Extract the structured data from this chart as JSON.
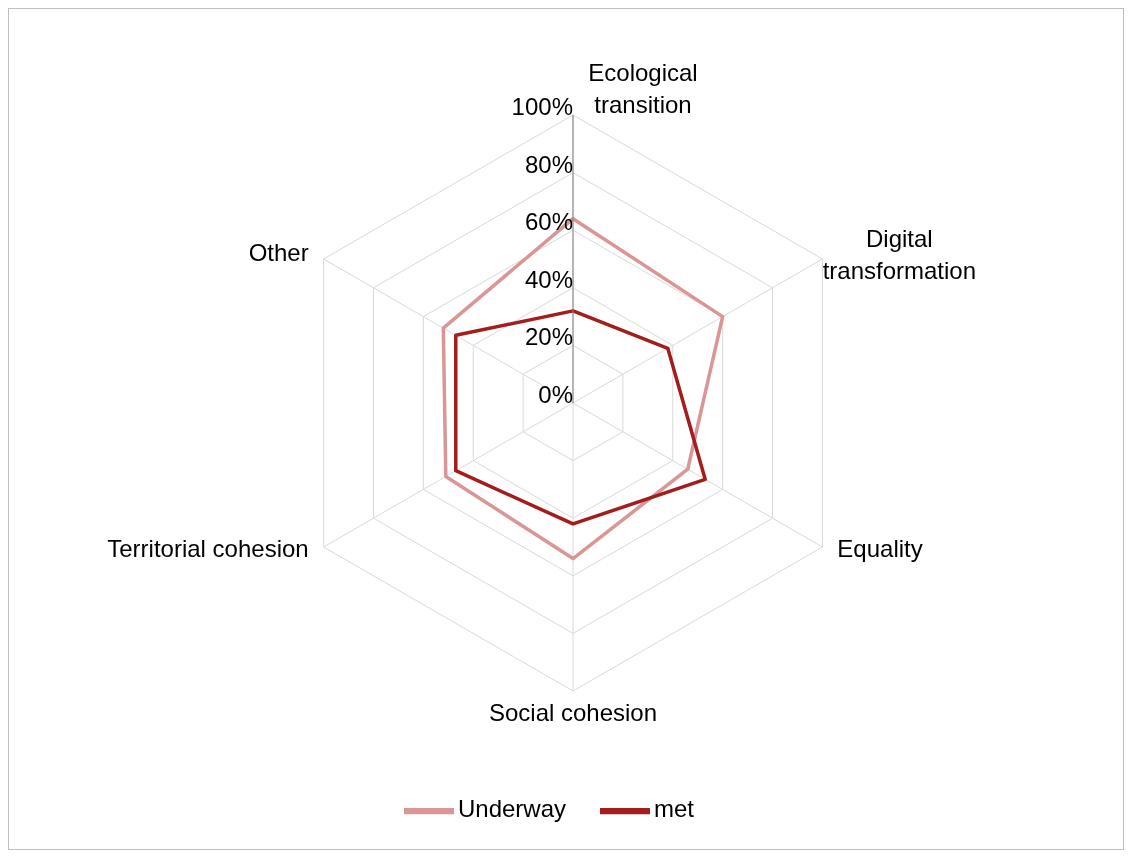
{
  "chart_data": {
    "type": "radar",
    "categories": [
      "Ecological transition",
      "Digital transformation",
      "Equality",
      "Social cohesion",
      "Territorial cohesion",
      "Other"
    ],
    "series": [
      {
        "name": "Underway",
        "color": "#d99694",
        "values": [
          64,
          60,
          46,
          54,
          51,
          52
        ]
      },
      {
        "name": "met",
        "color": "#a31d1d",
        "values": [
          32,
          38,
          53,
          42,
          47,
          47
        ]
      }
    ],
    "ylim": [
      0,
      100
    ],
    "yticks": [
      {
        "value": 0,
        "label": "0%"
      },
      {
        "value": 20,
        "label": "20%"
      },
      {
        "value": 40,
        "label": "40%"
      },
      {
        "value": 60,
        "label": "60%"
      },
      {
        "value": 80,
        "label": "80%"
      },
      {
        "value": 100,
        "label": "100%"
      }
    ],
    "grid": true,
    "legend": "bottom"
  }
}
